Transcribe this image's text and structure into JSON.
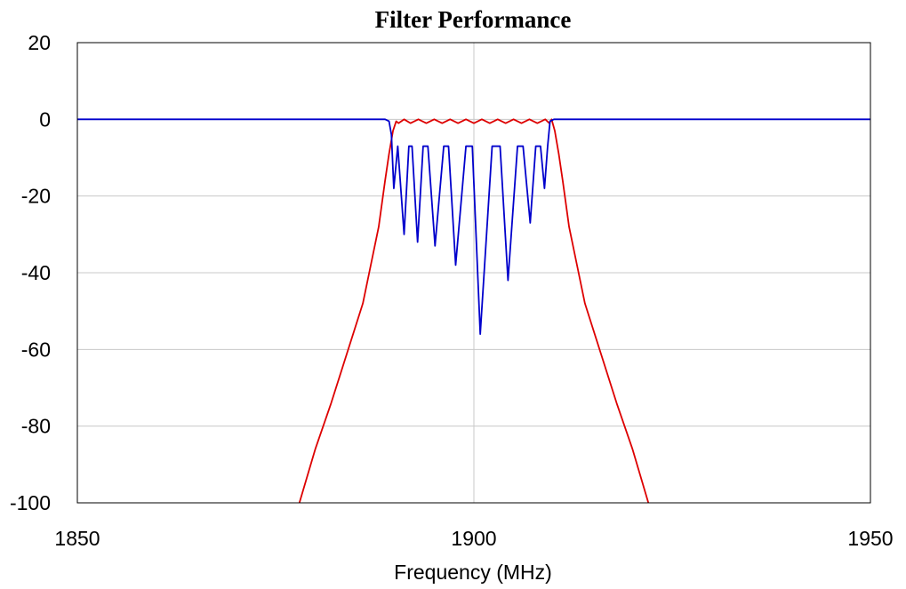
{
  "chart_data": {
    "type": "line",
    "title": "Filter Performance",
    "xlabel": "Frequency (MHz)",
    "ylabel": "",
    "xlim": [
      1850,
      1950
    ],
    "ylim": [
      -100,
      20
    ],
    "x_ticks": [
      1850,
      1900,
      1950
    ],
    "y_ticks": [
      20,
      0,
      -20,
      -40,
      -60,
      -80,
      -100
    ],
    "x_grid": [
      1900
    ],
    "y_grid": [
      0,
      -20,
      -40,
      -60,
      -80
    ],
    "grid": true,
    "legend": "none",
    "series": [
      {
        "color": "#dd0000",
        "x": [
          1878,
          1880,
          1882,
          1884,
          1886,
          1887,
          1888,
          1888.8,
          1889.3,
          1889.8,
          1890.2,
          1890.5,
          1891.2,
          1892,
          1893,
          1894,
          1895,
          1896,
          1897,
          1898,
          1899,
          1900,
          1901,
          1902,
          1903,
          1904,
          1905,
          1906,
          1907,
          1908,
          1909,
          1909.5,
          1909.8,
          1910.2,
          1910.7,
          1911.2,
          1912,
          1913,
          1914,
          1916,
          1918,
          1920,
          1922
        ],
        "y": [
          -100,
          -86,
          -74,
          -61,
          -48,
          -38,
          -28,
          -16,
          -9,
          -3,
          -0.5,
          -1,
          0,
          -1,
          0,
          -1,
          0,
          -1,
          0,
          -1,
          0,
          -1,
          0,
          -1,
          0,
          -1,
          0,
          -1,
          0,
          -1,
          0,
          -1,
          0,
          -3,
          -9,
          -16,
          -28,
          -38,
          -48,
          -61,
          -74,
          -86,
          -100
        ]
      },
      {
        "color": "#0000cc",
        "x": [
          1850,
          1888.8,
          1889.3,
          1889.6,
          1889.9,
          1890.4,
          1891.2,
          1891.8,
          1892.2,
          1892.9,
          1893.6,
          1894.2,
          1895.1,
          1896.2,
          1896.8,
          1897.7,
          1899,
          1899.8,
          1900.8,
          1902.3,
          1903.3,
          1904.3,
          1905.5,
          1906.2,
          1907.1,
          1907.8,
          1908.4,
          1908.9,
          1909.3,
          1909.6,
          1910.1,
          1910.5,
          1950
        ],
        "y": [
          0,
          0,
          -0.5,
          -4,
          -18,
          -7,
          -30,
          -7,
          -7,
          -32,
          -7,
          -7,
          -33,
          -7,
          -7,
          -38,
          -7,
          -7,
          -56,
          -7,
          -7,
          -42,
          -7,
          -7,
          -27,
          -7,
          -7,
          -18,
          -7,
          -0.5,
          0,
          0,
          0
        ]
      }
    ]
  }
}
